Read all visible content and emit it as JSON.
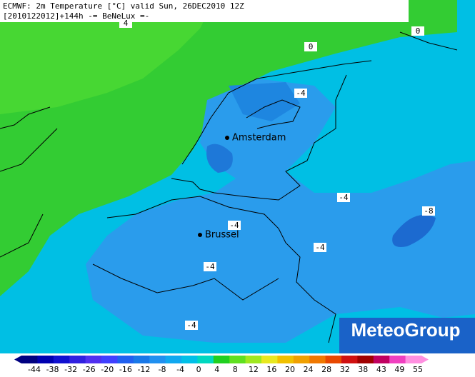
{
  "header": {
    "line1": "ECMWF: 2m Temperature [°C] valid Sun, 26DEC2010 12Z",
    "line2": "[2010122012]+144h -= BeNeLux =-"
  },
  "cities": [
    {
      "label": "Amsterdam"
    },
    {
      "label": "Brussel"
    }
  ],
  "contour_labels": [
    "4",
    "0",
    "0",
    "-4",
    "-4",
    "-8",
    "-4",
    "-4",
    "-4",
    "-4"
  ],
  "legend": {
    "labels": [
      "-44",
      "-38",
      "-32",
      "-26",
      "-20",
      "-16",
      "-12",
      "-8",
      "-4",
      "0",
      "4",
      "8",
      "12",
      "16",
      "20",
      "24",
      "28",
      "32",
      "38",
      "43",
      "49",
      "55"
    ],
    "colors": [
      "#000080",
      "#0000b0",
      "#1010d0",
      "#3020e0",
      "#5030f0",
      "#4040ff",
      "#2060f0",
      "#1878e8",
      "#2090f0",
      "#10a8f0",
      "#00c0e8",
      "#00d8c0",
      "#20d020",
      "#60e020",
      "#a0e820",
      "#e8e820",
      "#f0c000",
      "#f0a000",
      "#f07800",
      "#e84800",
      "#d01010",
      "#a00000",
      "#c00060",
      "#f040c0",
      "#ff90e0"
    ]
  },
  "logo": "MeteoGroup"
}
